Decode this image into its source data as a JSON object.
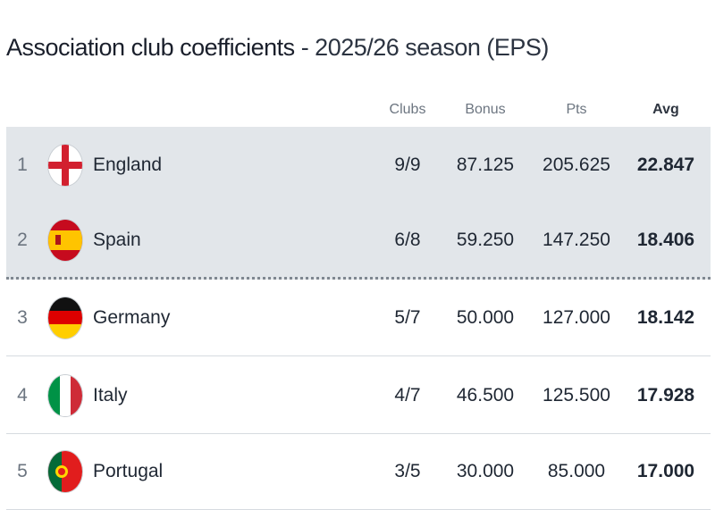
{
  "title": {
    "main": "Association club coefficients",
    "sub": " - 2025/26 season (EPS)"
  },
  "columns": {
    "clubs": "Clubs",
    "bonus": "Bonus",
    "pts": "Pts",
    "avg": "Avg"
  },
  "rows": [
    {
      "rank": "1",
      "country": "England",
      "flag": "england-flag",
      "clubs": "9/9",
      "bonus": "87.125",
      "pts": "205.625",
      "avg": "22.847",
      "highlighted": true
    },
    {
      "rank": "2",
      "country": "Spain",
      "flag": "spain-flag",
      "clubs": "6/8",
      "bonus": "59.250",
      "pts": "147.250",
      "avg": "18.406",
      "highlighted": true
    },
    {
      "rank": "3",
      "country": "Germany",
      "flag": "germany-flag",
      "clubs": "5/7",
      "bonus": "50.000",
      "pts": "127.000",
      "avg": "18.142",
      "highlighted": false
    },
    {
      "rank": "4",
      "country": "Italy",
      "flag": "italy-flag",
      "clubs": "4/7",
      "bonus": "46.500",
      "pts": "125.500",
      "avg": "17.928",
      "highlighted": false
    },
    {
      "rank": "5",
      "country": "Portugal",
      "flag": "portugal-flag",
      "clubs": "3/5",
      "bonus": "30.000",
      "pts": "85.000",
      "avg": "17.000",
      "highlighted": false
    }
  ],
  "colors": {
    "highlight_bg": "#e2e6ea",
    "text": "#1f2733",
    "muted": "#6c7580"
  }
}
